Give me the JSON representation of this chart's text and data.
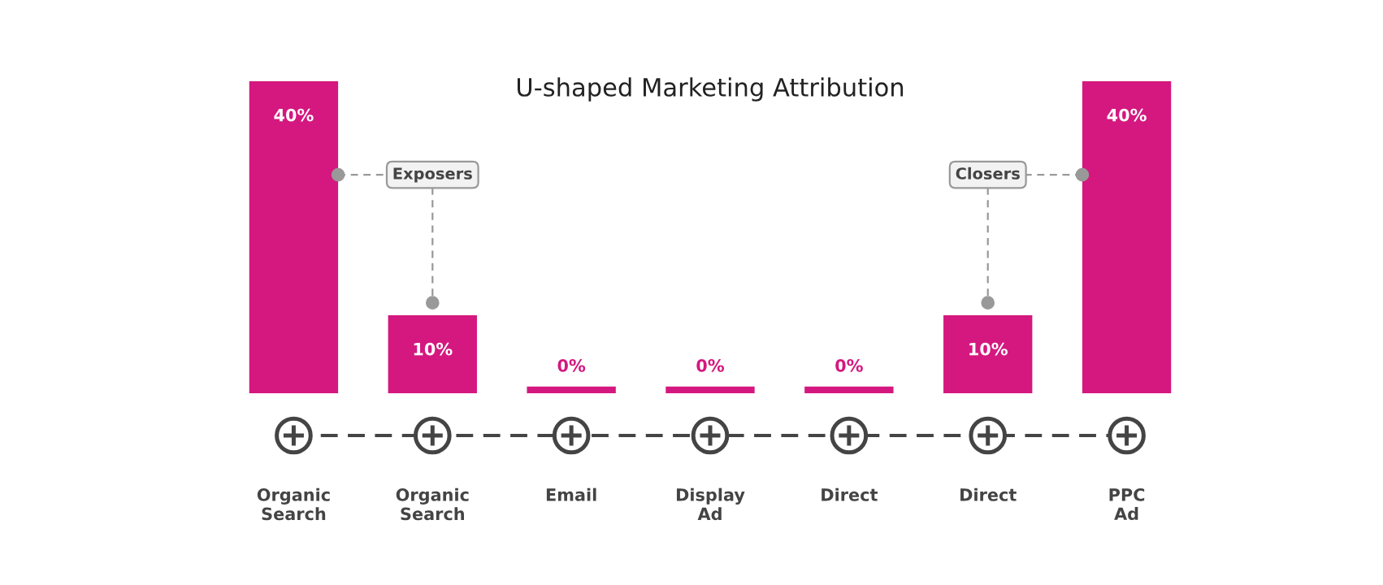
{
  "chart_data": {
    "type": "bar",
    "title": "U-shaped Marketing Attribution",
    "categories": [
      "Organic\nSearch",
      "Organic\nSearch",
      "Email",
      "Display\nAd",
      "Direct",
      "Direct",
      "PPC\nAd"
    ],
    "values": [
      40,
      10,
      0,
      0,
      0,
      10,
      40
    ],
    "value_labels": [
      "40%",
      "10%",
      "0%",
      "0%",
      "0%",
      "10%",
      "40%"
    ],
    "color": "#d4187f",
    "annotations": [
      "Exposers",
      "Closers"
    ],
    "grid": false,
    "legend": false
  }
}
